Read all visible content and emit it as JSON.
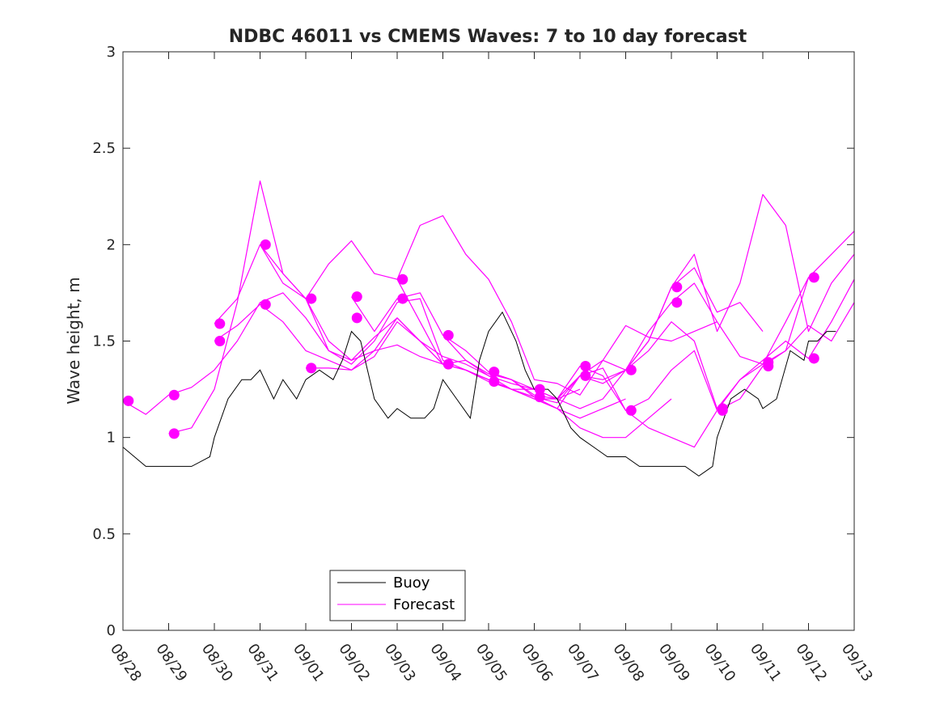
{
  "chart_data": {
    "type": "line",
    "title": "NDBC 46011 vs CMEMS Waves: 7 to 10 day forecast",
    "xlabel": "",
    "ylabel": "Wave height, m",
    "xlim": [
      0,
      16
    ],
    "ylim": [
      0,
      3
    ],
    "x_tick_values": [
      0,
      1,
      2,
      3,
      4,
      5,
      6,
      7,
      8,
      9,
      10,
      11,
      12,
      13,
      14,
      15,
      16
    ],
    "x_tick_labels": [
      "08/28",
      "08/29",
      "08/30",
      "08/31",
      "09/01",
      "09/02",
      "09/03",
      "09/04",
      "09/05",
      "09/06",
      "09/07",
      "09/08",
      "09/09",
      "09/10",
      "09/11",
      "09/12",
      "09/13"
    ],
    "y_tick_values": [
      0,
      0.5,
      1,
      1.5,
      2,
      2.5,
      3
    ],
    "y_tick_labels": [
      "0",
      "0.5",
      "1",
      "1.5",
      "2",
      "2.5",
      "3"
    ],
    "grid": false,
    "legend_position": "bottom-center",
    "colors": {
      "buoy": "#000000",
      "forecast": "#ff00ff",
      "axes": "#262626"
    },
    "legend": [
      {
        "name": "Buoy",
        "color": "#000000"
      },
      {
        "name": "Forecast",
        "color": "#ff00ff"
      }
    ],
    "buoy": {
      "name": "Buoy",
      "x": [
        0.0,
        0.5,
        1.0,
        1.5,
        1.9,
        2.0,
        2.3,
        2.6,
        2.8,
        3.0,
        3.3,
        3.5,
        3.8,
        4.0,
        4.3,
        4.6,
        4.8,
        5.0,
        5.2,
        5.5,
        5.8,
        6.0,
        6.3,
        6.6,
        6.8,
        7.0,
        7.3,
        7.6,
        7.8,
        8.0,
        8.3,
        8.6,
        8.8,
        9.0,
        9.3,
        9.5,
        9.8,
        10.0,
        10.3,
        10.6,
        10.9,
        11.0,
        11.3,
        11.6,
        11.9,
        12.0,
        12.3,
        12.6,
        12.9,
        13.0,
        13.3,
        13.6,
        13.9,
        14.0,
        14.3,
        14.6,
        14.9,
        15.0,
        15.2,
        15.4,
        15.6
      ],
      "y": [
        0.95,
        0.85,
        0.85,
        0.85,
        0.9,
        1.0,
        1.2,
        1.3,
        1.3,
        1.35,
        1.2,
        1.3,
        1.2,
        1.3,
        1.35,
        1.3,
        1.4,
        1.55,
        1.5,
        1.2,
        1.1,
        1.15,
        1.1,
        1.1,
        1.15,
        1.3,
        1.2,
        1.1,
        1.4,
        1.55,
        1.65,
        1.5,
        1.35,
        1.25,
        1.25,
        1.2,
        1.05,
        1.0,
        0.95,
        0.9,
        0.9,
        0.9,
        0.85,
        0.85,
        0.85,
        0.85,
        0.85,
        0.8,
        0.85,
        1.0,
        1.2,
        1.25,
        1.2,
        1.15,
        1.2,
        1.45,
        1.4,
        1.5,
        1.5,
        1.55,
        1.55
      ]
    },
    "forecast": {
      "name": "Forecast",
      "lines": [
        {
          "x": [
            0,
            0.5,
            1,
            1.5,
            2,
            2.5,
            3,
            3.5,
            4,
            4.5,
            5,
            5.5,
            6,
            6.5,
            7,
            7.5,
            8,
            8.5,
            9
          ],
          "y": [
            1.19,
            1.12,
            1.22,
            1.26,
            1.35,
            1.5,
            1.7,
            1.75,
            1.62,
            1.45,
            1.4,
            1.52,
            1.62,
            1.5,
            1.42,
            1.38,
            1.32,
            1.28,
            1.25
          ]
        },
        {
          "x": [
            1,
            1.5,
            2,
            2.5,
            3,
            3.5,
            4,
            4.5,
            5,
            5.5,
            6,
            6.5,
            7,
            7.5,
            8,
            8.5,
            9,
            9.5,
            10
          ],
          "y": [
            1.02,
            1.05,
            1.25,
            1.7,
            2.33,
            1.85,
            1.72,
            1.5,
            1.4,
            1.45,
            1.48,
            1.42,
            1.38,
            1.35,
            1.3,
            1.25,
            1.2,
            1.2,
            1.25
          ]
        },
        {
          "x": [
            2,
            2.5,
            3,
            3.5,
            4,
            4.5,
            5,
            5.5,
            6,
            6.5,
            7,
            7.5,
            8,
            8.5,
            9,
            9.5,
            10,
            10.5,
            11
          ],
          "y": [
            1.59,
            1.72,
            2.0,
            1.85,
            1.72,
            1.45,
            1.38,
            1.5,
            1.7,
            1.72,
            1.4,
            1.35,
            1.3,
            1.25,
            1.2,
            1.15,
            1.1,
            1.15,
            1.2
          ]
        },
        {
          "x": [
            2,
            2.5,
            3,
            3.5,
            4,
            4.5,
            5,
            5.5,
            6,
            6.5,
            7,
            7.5,
            8,
            8.5,
            9,
            9.5,
            10,
            10.5,
            11,
            11.5,
            12
          ],
          "y": [
            1.5,
            1.58,
            1.69,
            1.6,
            1.45,
            1.4,
            1.35,
            1.42,
            1.6,
            1.5,
            1.38,
            1.35,
            1.3,
            1.25,
            1.2,
            1.15,
            1.05,
            1.0,
            1.0,
            1.1,
            1.2
          ]
        },
        {
          "x": [
            3,
            3.5,
            4,
            4.5,
            5,
            5.5,
            6,
            6.5,
            7,
            7.5,
            8,
            8.5,
            9,
            9.5,
            10,
            10.5,
            11,
            11.5,
            12,
            12.5,
            13
          ],
          "y": [
            2.0,
            1.8,
            1.72,
            1.9,
            2.02,
            1.85,
            1.82,
            2.1,
            2.15,
            1.95,
            1.82,
            1.6,
            1.3,
            1.28,
            1.22,
            1.4,
            1.58,
            1.52,
            1.5,
            1.55,
            1.6
          ]
        },
        {
          "x": [
            4,
            4.5,
            5,
            5.5,
            6,
            6.5,
            7,
            7.5,
            8,
            8.5,
            9,
            9.5,
            10,
            10.5,
            11,
            11.5,
            12,
            12.5,
            13,
            13.5,
            14
          ],
          "y": [
            1.36,
            1.36,
            1.35,
            1.45,
            1.62,
            1.5,
            1.38,
            1.4,
            1.33,
            1.3,
            1.22,
            1.2,
            1.32,
            1.4,
            1.35,
            1.5,
            1.78,
            1.88,
            1.65,
            1.7,
            1.55
          ]
        },
        {
          "x": [
            5,
            5.5,
            6,
            6.5,
            7,
            7.5,
            8,
            8.5,
            9,
            9.5,
            10,
            10.5,
            11,
            11.5,
            12,
            12.5,
            13,
            13.5,
            14,
            14.5,
            15
          ],
          "y": [
            1.73,
            1.55,
            1.72,
            1.75,
            1.53,
            1.45,
            1.34,
            1.3,
            1.25,
            1.2,
            1.15,
            1.2,
            1.35,
            1.45,
            1.6,
            1.5,
            1.15,
            1.3,
            1.38,
            1.6,
            1.83
          ]
        },
        {
          "x": [
            6,
            6.5,
            7,
            7.5,
            8,
            8.5,
            9,
            9.5,
            10,
            10.5,
            11,
            11.5,
            12,
            12.5,
            13,
            13.5,
            14,
            14.5,
            15,
            15.5,
            16
          ],
          "y": [
            1.82,
            1.6,
            1.38,
            1.35,
            1.29,
            1.25,
            1.21,
            1.18,
            1.32,
            1.28,
            1.35,
            1.55,
            1.7,
            1.8,
            1.6,
            1.42,
            1.38,
            1.45,
            1.83,
            1.95,
            2.07
          ]
        },
        {
          "x": [
            7,
            7.5,
            8,
            8.5,
            9,
            9.5,
            10,
            10.5,
            11,
            11.5,
            12,
            12.5,
            13,
            13.5,
            14,
            14.5,
            15,
            15.5,
            16
          ],
          "y": [
            1.53,
            1.4,
            1.32,
            1.25,
            1.25,
            1.2,
            1.37,
            1.32,
            1.14,
            1.05,
            1.0,
            0.95,
            1.14,
            1.3,
            1.4,
            1.5,
            1.41,
            1.6,
            1.82
          ]
        },
        {
          "x": [
            8,
            8.5,
            9,
            9.5,
            10,
            10.5,
            11,
            11.5,
            12,
            12.5,
            13,
            13.5,
            14,
            14.5,
            15,
            15.5,
            16
          ],
          "y": [
            1.34,
            1.3,
            1.21,
            1.15,
            1.32,
            1.36,
            1.14,
            1.2,
            1.35,
            1.45,
            1.14,
            1.2,
            1.37,
            1.45,
            1.58,
            1.5,
            1.7
          ]
        },
        {
          "x": [
            9,
            9.5,
            10,
            10.5,
            11,
            11.5,
            12,
            12.5,
            13,
            13.5,
            14,
            14.5,
            15,
            15.5,
            16
          ],
          "y": [
            1.25,
            1.2,
            1.32,
            1.3,
            1.35,
            1.5,
            1.78,
            1.95,
            1.55,
            1.8,
            2.26,
            2.1,
            1.55,
            1.8,
            1.95
          ]
        }
      ],
      "markers": [
        {
          "x": 0.12,
          "y": 1.19
        },
        {
          "x": 1.12,
          "y": 1.22
        },
        {
          "x": 1.12,
          "y": 1.02
        },
        {
          "x": 2.12,
          "y": 1.59
        },
        {
          "x": 2.12,
          "y": 1.5
        },
        {
          "x": 3.12,
          "y": 2.0
        },
        {
          "x": 3.12,
          "y": 1.69
        },
        {
          "x": 4.12,
          "y": 1.72
        },
        {
          "x": 4.12,
          "y": 1.36
        },
        {
          "x": 5.12,
          "y": 1.73
        },
        {
          "x": 5.12,
          "y": 1.62
        },
        {
          "x": 6.12,
          "y": 1.82
        },
        {
          "x": 6.12,
          "y": 1.72
        },
        {
          "x": 7.12,
          "y": 1.53
        },
        {
          "x": 7.12,
          "y": 1.38
        },
        {
          "x": 8.12,
          "y": 1.34
        },
        {
          "x": 8.12,
          "y": 1.29
        },
        {
          "x": 9.12,
          "y": 1.25
        },
        {
          "x": 9.12,
          "y": 1.21
        },
        {
          "x": 10.12,
          "y": 1.37
        },
        {
          "x": 10.12,
          "y": 1.32
        },
        {
          "x": 11.12,
          "y": 1.35
        },
        {
          "x": 11.12,
          "y": 1.14
        },
        {
          "x": 12.12,
          "y": 1.78
        },
        {
          "x": 12.12,
          "y": 1.7
        },
        {
          "x": 13.12,
          "y": 1.15
        },
        {
          "x": 13.12,
          "y": 1.14
        },
        {
          "x": 14.12,
          "y": 1.39
        },
        {
          "x": 14.12,
          "y": 1.37
        },
        {
          "x": 15.12,
          "y": 1.83
        },
        {
          "x": 15.12,
          "y": 1.41
        }
      ]
    }
  }
}
